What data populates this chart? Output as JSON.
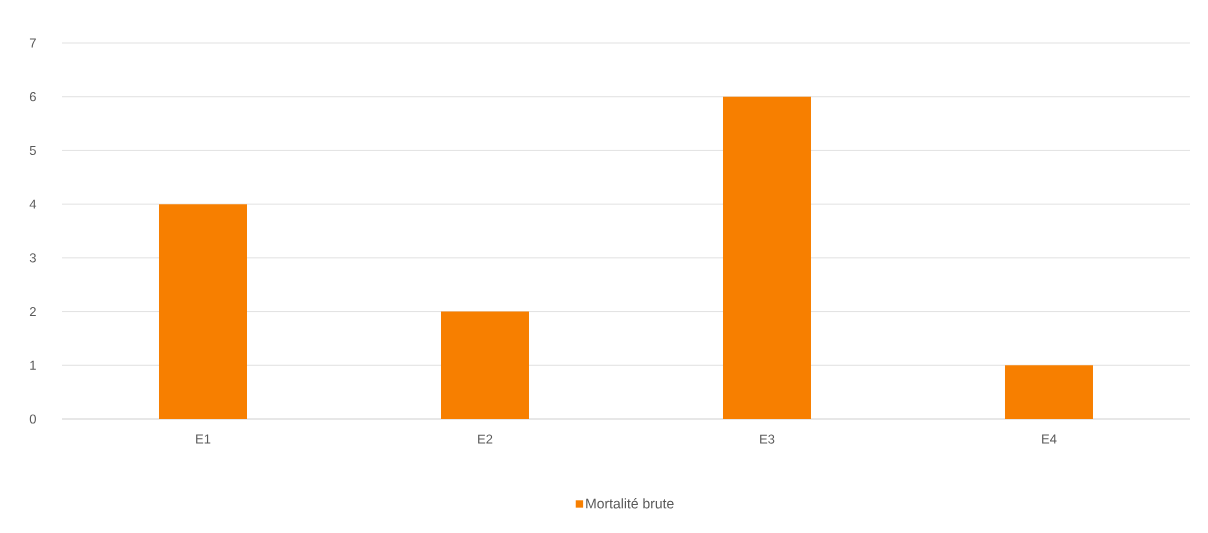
{
  "chart_data": {
    "type": "bar",
    "categories": [
      "E1",
      "E2",
      "E3",
      "E4"
    ],
    "series": [
      {
        "name": "Mortalité brute",
        "color": "#f77f00",
        "values": [
          4,
          2,
          6,
          1
        ]
      }
    ],
    "ylim": [
      0,
      7
    ],
    "yticks": [
      0,
      1,
      2,
      3,
      4,
      5,
      6,
      7
    ],
    "grid": "y",
    "legend": "bottom"
  }
}
